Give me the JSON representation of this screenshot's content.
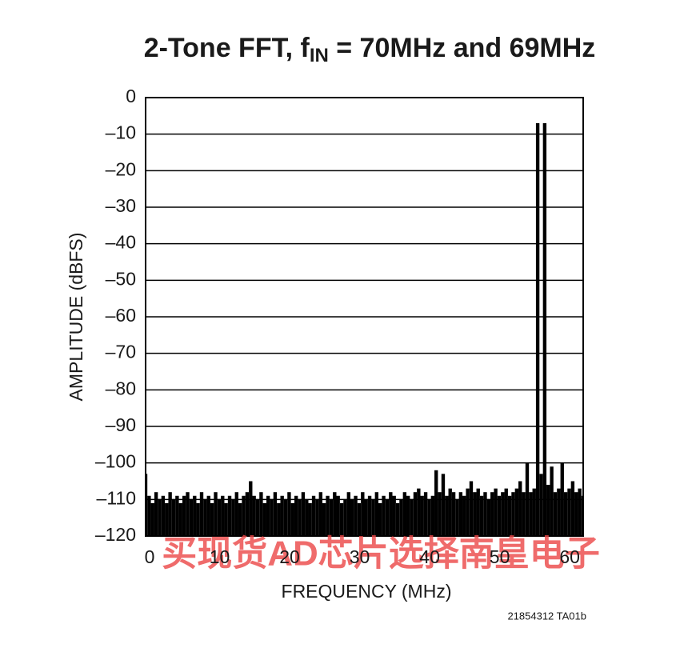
{
  "chart_data": {
    "type": "bar",
    "title": [
      "2-Tone FFT, f",
      "IN",
      " = 70MHz and 69MHz"
    ],
    "xlabel": "FREQUENCY (MHz)",
    "ylabel": "AMPLITUDE (dBFS)",
    "watermark": "买现货AD芯片选择南皇电子",
    "figure_id": "21854312 TA01b",
    "color": "#000000",
    "grid": true,
    "xlim": [
      0,
      62.5
    ],
    "ylim": [
      -120,
      0
    ],
    "xticks": [
      0,
      10,
      20,
      30,
      40,
      50,
      60
    ],
    "yticks": [
      {
        "value": 0,
        "label": "0"
      },
      {
        "value": -10,
        "label": "–10"
      },
      {
        "value": -20,
        "label": "–20"
      },
      {
        "value": -30,
        "label": "–30"
      },
      {
        "value": -40,
        "label": "–40"
      },
      {
        "value": -50,
        "label": "–50"
      },
      {
        "value": -60,
        "label": "–60"
      },
      {
        "value": -70,
        "label": "–70"
      },
      {
        "value": -80,
        "label": "–80"
      },
      {
        "value": -90,
        "label": "–90"
      },
      {
        "value": -100,
        "label": "–100"
      },
      {
        "value": -110,
        "label": "–110"
      },
      {
        "value": -120,
        "label": "–120"
      }
    ],
    "x": [
      0,
      0.5,
      1,
      1.5,
      2,
      2.5,
      3,
      3.5,
      4,
      4.5,
      5,
      5.5,
      6,
      6.5,
      7,
      7.5,
      8,
      8.5,
      9,
      9.5,
      10,
      10.5,
      11,
      11.5,
      12,
      12.5,
      13,
      13.5,
      14,
      14.5,
      15,
      15.5,
      16,
      16.5,
      17,
      17.5,
      18,
      18.5,
      19,
      19.5,
      20,
      20.5,
      21,
      21.5,
      22,
      22.5,
      23,
      23.5,
      24,
      24.5,
      25,
      25.5,
      26,
      26.5,
      27,
      27.5,
      28,
      28.5,
      29,
      29.5,
      30,
      30.5,
      31,
      31.5,
      32,
      32.5,
      33,
      33.5,
      34,
      34.5,
      35,
      35.5,
      36,
      36.5,
      37,
      37.5,
      38,
      38.5,
      39,
      39.5,
      40,
      40.5,
      41,
      41.5,
      42,
      42.5,
      43,
      43.5,
      44,
      44.5,
      45,
      45.5,
      46,
      46.5,
      47,
      47.5,
      48,
      48.5,
      49,
      49.5,
      50,
      50.5,
      51,
      51.5,
      52,
      52.5,
      53,
      53.5,
      54,
      54.5,
      55,
      55.5,
      56,
      56.5,
      57,
      57.5,
      58,
      58.5,
      59,
      59.5,
      60,
      60.5,
      61,
      61.5,
      62,
      62.5
    ],
    "values": [
      -103,
      -109,
      -111,
      -108,
      -110,
      -109,
      -111,
      -108,
      -110,
      -109,
      -111,
      -109,
      -108,
      -110,
      -109,
      -111,
      -108,
      -110,
      -109,
      -111,
      -108,
      -110,
      -109,
      -111,
      -109,
      -110,
      -108,
      -111,
      -109,
      -108,
      -105,
      -109,
      -110,
      -108,
      -111,
      -109,
      -110,
      -108,
      -111,
      -109,
      -110,
      -108,
      -111,
      -109,
      -110,
      -108,
      -110,
      -111,
      -109,
      -110,
      -108,
      -111,
      -109,
      -110,
      -108,
      -109,
      -111,
      -110,
      -108,
      -110,
      -109,
      -111,
      -108,
      -110,
      -109,
      -110,
      -108,
      -111,
      -109,
      -110,
      -108,
      -109,
      -111,
      -110,
      -108,
      -109,
      -110,
      -108,
      -107,
      -109,
      -108,
      -110,
      -109,
      -102,
      -108,
      -103,
      -109,
      -107,
      -108,
      -110,
      -108,
      -109,
      -107,
      -105,
      -108,
      -107,
      -109,
      -108,
      -110,
      -108,
      -107,
      -109,
      -108,
      -107,
      -109,
      -108,
      -107,
      -105,
      -108,
      -100,
      -108,
      -107,
      -7,
      -103,
      -7,
      -106,
      -101,
      -108,
      -107,
      -100,
      -108,
      -107,
      -105,
      -108,
      -107,
      -109
    ]
  }
}
